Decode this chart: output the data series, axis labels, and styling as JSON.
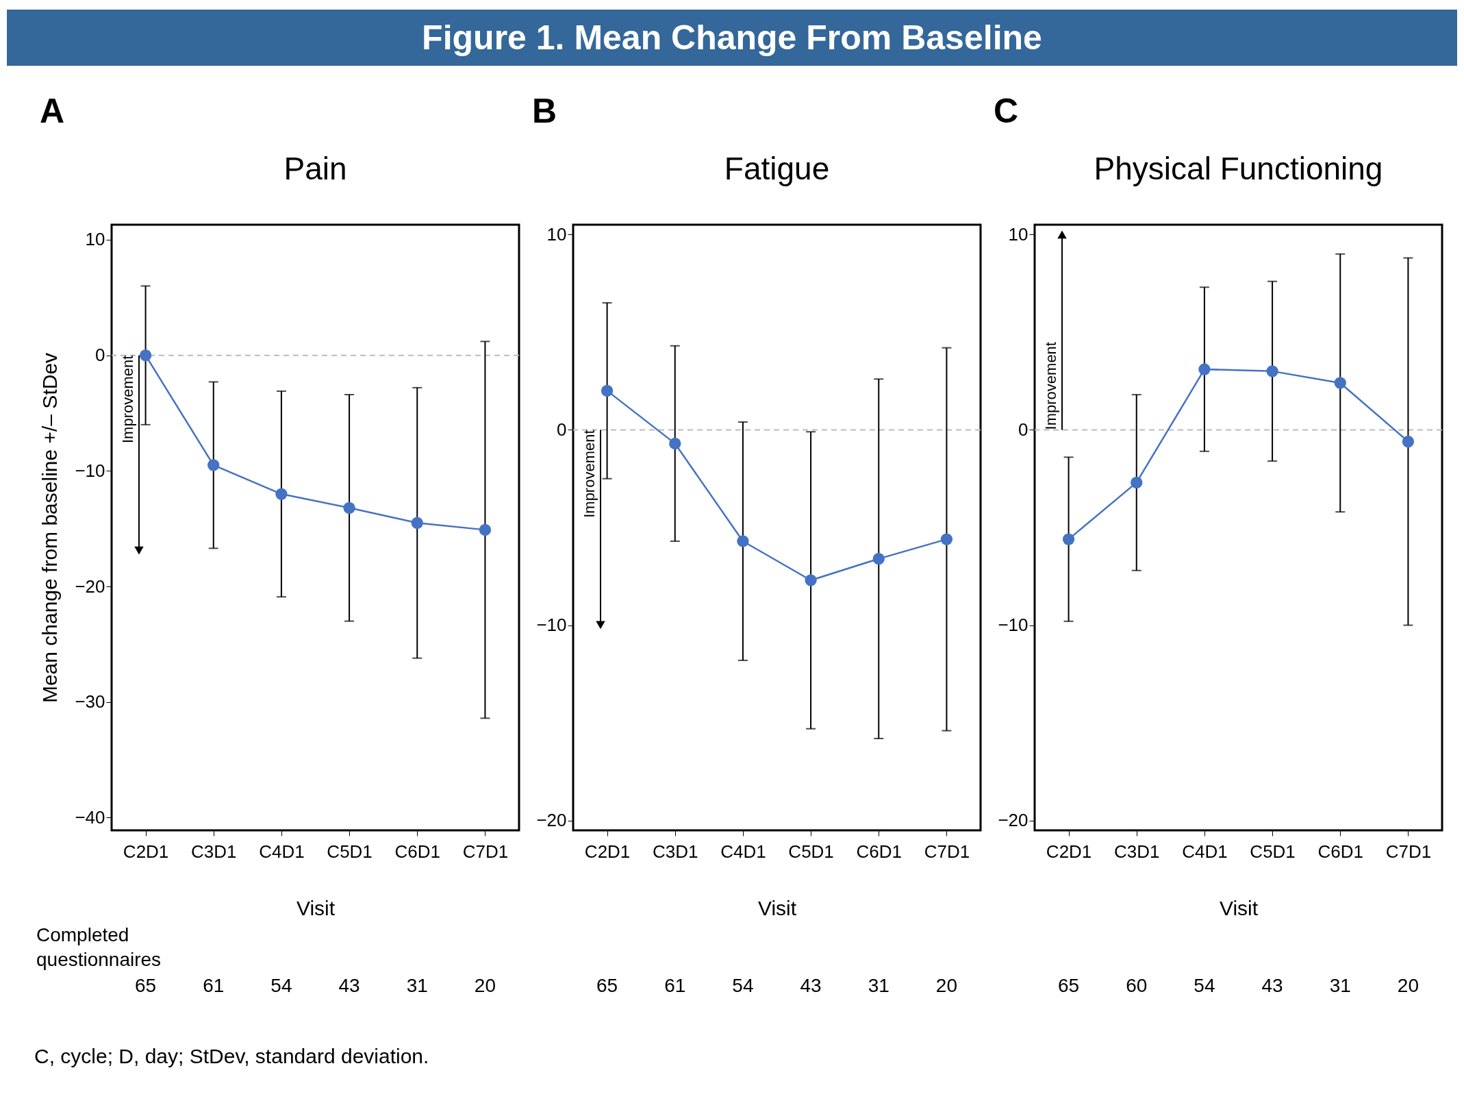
{
  "chart_data": [
    {
      "type": "line",
      "title": "Pain",
      "xlabel": "Visit",
      "ylabel": "Mean change from baseline +/– StDev",
      "categories": [
        "C2D1",
        "C3D1",
        "C4D1",
        "C5D1",
        "C6D1",
        "C7D1"
      ],
      "series": [
        {
          "color": "#4472c4",
          "values": [
            0,
            -9.5,
            -12.0,
            -13.2,
            -14.5,
            -15.1
          ],
          "errors": [
            6.0,
            7.2,
            8.9,
            9.8,
            11.7,
            16.3
          ]
        }
      ],
      "ylim": [
        -41.1,
        11.3
      ],
      "yticks": [
        -40,
        -30,
        -20,
        -10,
        0,
        10
      ],
      "grid": false,
      "marker": "circle",
      "line_style": "solid",
      "ref_lines": [
        {
          "axis": "y",
          "value": 0,
          "color": "#bbbbbb",
          "line_style": "dashed"
        }
      ],
      "annotations": [
        "Figure 1. Mean Change From Baseline",
        "A",
        "Improvement",
        "Completed questionnaires",
        "65",
        "61",
        "54",
        "43",
        "31",
        "20",
        "C, cycle; D, day; StDev, standard deviation."
      ]
    },
    {
      "type": "line",
      "title": "Fatigue",
      "xlabel": "Visit",
      "categories": [
        "C2D1",
        "C3D1",
        "C4D1",
        "C5D1",
        "C6D1",
        "C7D1"
      ],
      "series": [
        {
          "color": "#4472c4",
          "values": [
            2.0,
            -0.7,
            -5.7,
            -7.7,
            -6.6,
            -5.6
          ],
          "errors": [
            4.5,
            5.0,
            6.1,
            7.6,
            9.2,
            9.8
          ]
        }
      ],
      "ylim": [
        -20.5,
        10.5
      ],
      "yticks": [
        -20,
        -10,
        0,
        10
      ],
      "grid": false,
      "marker": "circle",
      "line_style": "solid",
      "ref_lines": [
        {
          "axis": "y",
          "value": 0,
          "color": "#bbbbbb",
          "line_style": "dashed"
        }
      ],
      "annotations": [
        "B",
        "Improvement",
        "65",
        "61",
        "54",
        "43",
        "31",
        "20"
      ]
    },
    {
      "type": "line",
      "title": "Physical Functioning",
      "xlabel": "Visit",
      "categories": [
        "C2D1",
        "C3D1",
        "C4D1",
        "C5D1",
        "C6D1",
        "C7D1"
      ],
      "series": [
        {
          "color": "#4472c4",
          "values": [
            -5.6,
            -2.7,
            3.1,
            3.0,
            2.4,
            -0.6
          ],
          "errors": [
            4.2,
            4.5,
            4.2,
            4.6,
            6.6,
            9.4
          ]
        }
      ],
      "ylim": [
        -20.5,
        10.5
      ],
      "yticks": [
        -20,
        -10,
        0,
        10
      ],
      "grid": false,
      "marker": "circle",
      "line_style": "solid",
      "ref_lines": [
        {
          "axis": "y",
          "value": 0,
          "color": "#bbbbbb",
          "line_style": "dashed"
        }
      ],
      "annotations": [
        "C",
        "Improvement",
        "65",
        "60",
        "54",
        "43",
        "31",
        "20"
      ]
    }
  ]
}
